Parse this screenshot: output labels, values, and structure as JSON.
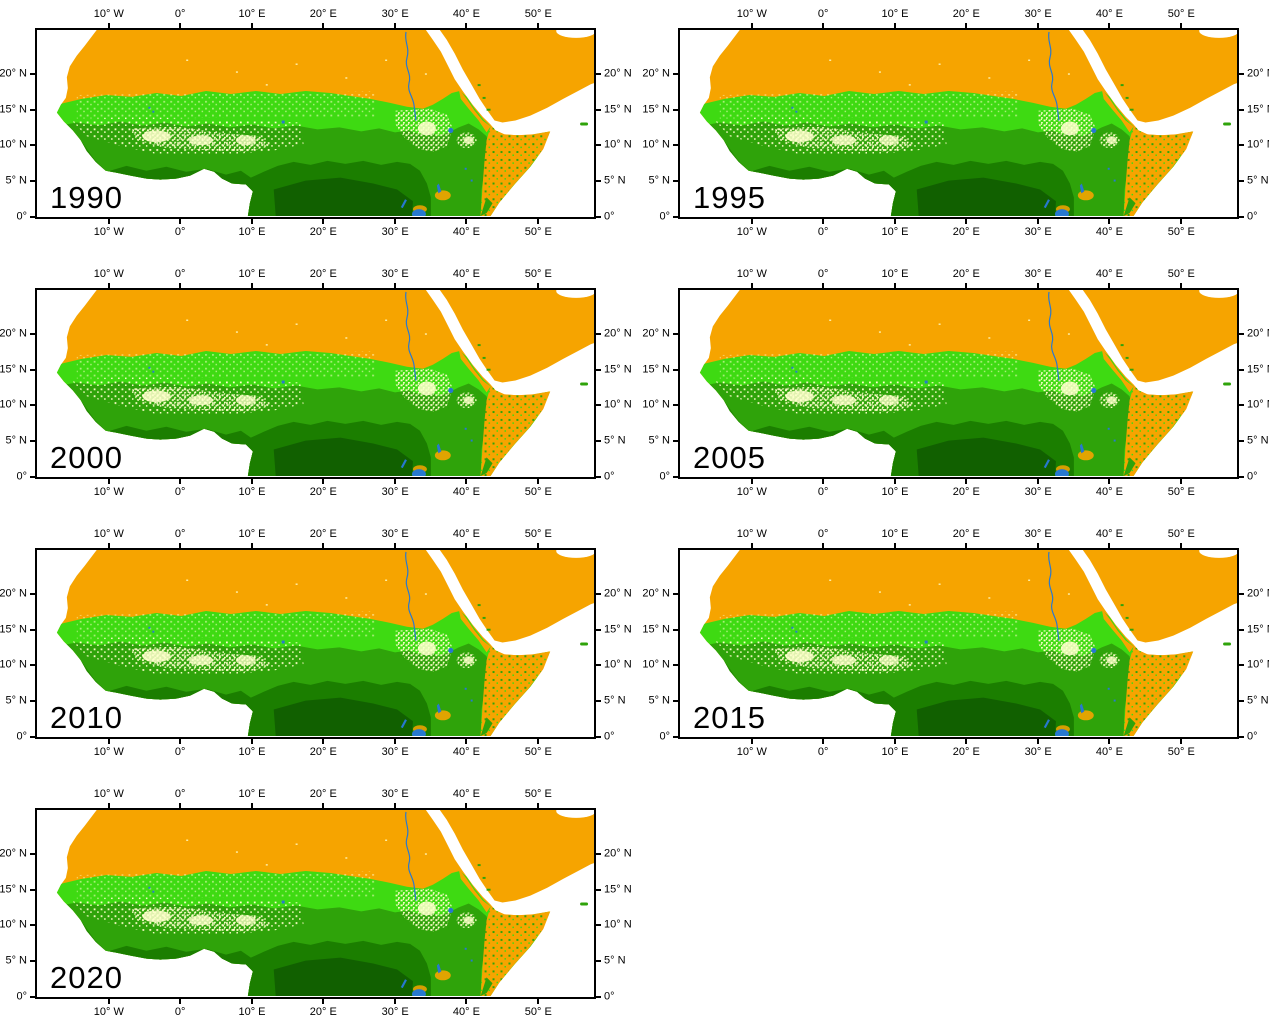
{
  "figure": {
    "background": "#ffffff",
    "panel_count": 7
  },
  "panels": [
    {
      "year": "1990"
    },
    {
      "year": "1995"
    },
    {
      "year": "2000"
    },
    {
      "year": "2005"
    },
    {
      "year": "2010"
    },
    {
      "year": "2015"
    },
    {
      "year": "2020"
    }
  ],
  "axes": {
    "lon_labels": [
      "10° W",
      "0°",
      "10° E",
      "20° E",
      "30° E",
      "40° E",
      "50° E"
    ],
    "lon_ticks_pct": [
      12.9,
      25.7,
      38.6,
      51.4,
      64.3,
      77.1,
      90.0
    ],
    "lat_labels": [
      "20° N",
      "15° N",
      "10° N",
      "5° N",
      "0°"
    ],
    "lat_ticks_pct": [
      23.7,
      42.6,
      61.6,
      80.5,
      100
    ]
  },
  "land_cover_colors": {
    "desert_orange": "#F6A400",
    "grass_light_green": "#3EDA12",
    "savanna_medium_green": "#2FA30A",
    "forest_dark_green": "#1B7E00",
    "forest_deepest_green": "#116000",
    "cropland_cream": "#FFFFCC",
    "water_blue": "#2878D0",
    "ocean_white": "#FFFFFF"
  }
}
